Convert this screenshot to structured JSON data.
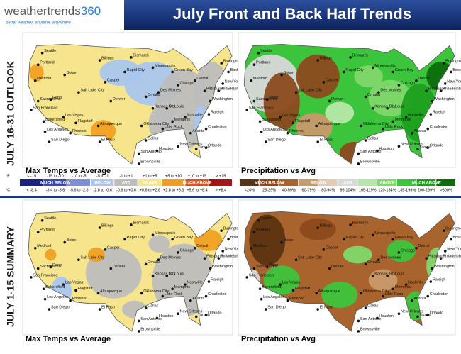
{
  "header": {
    "logo_word": "weathertrends",
    "logo_number": "360",
    "tagline": "better weather, anytime, anywhere",
    "title": "July Front and Back Half Trends"
  },
  "sections": [
    {
      "label": "JULY 16-31 OUTLOOK",
      "maps": [
        {
          "caption": "Max Temps vs Average",
          "kind": "temp_outlook"
        },
        {
          "caption": "Precipitation vs Avg",
          "kind": "precip_outlook"
        }
      ]
    },
    {
      "label": "JULY 1-15 SUMMARY",
      "maps": [
        {
          "caption": "Max Temps vs Average",
          "kind": "temp_summary"
        },
        {
          "caption": "Precipitation vs Avg",
          "kind": "precip_summary"
        }
      ]
    }
  ],
  "cities": [
    "Seattle",
    "Portland",
    "Medford",
    "Boise",
    "Reno",
    "Sacramento",
    "San Francisco",
    "Bakersfield",
    "Los Angeles",
    "San Diego",
    "Las Vegas",
    "Phoenix",
    "Flagstaff",
    "Salt Lake City",
    "Billings",
    "Casper",
    "Denver",
    "Albuquerque",
    "El Paso",
    "Bismarck",
    "Rapid City",
    "Minneapolis",
    "Omaha",
    "Kansas City",
    "Oklahoma City",
    "Dallas",
    "San Antonio",
    "Houston",
    "New Orleans",
    "Des Moines",
    "Chicago",
    "Green Bay",
    "Detroit",
    "St. Louis",
    "Little Rock",
    "Memphis",
    "Nashville",
    "Atlanta",
    "Charleston",
    "Tampa",
    "Orlando",
    "Washington",
    "Philadelphia",
    "New York",
    "Boston",
    "Burlington",
    "Pittsburgh",
    "Raleigh",
    "Brownsville"
  ],
  "temp_legend": {
    "unit_f": "°F",
    "unit_c": "°C",
    "f_ranges": [
      "< -15",
      "-15 to -10",
      "-10 to -5",
      "-5 to -1",
      "-1 to +1",
      "+1 to +5",
      "+5 to +10",
      "+10 to +15",
      "> +15"
    ],
    "c_ranges": [
      "< -8.4",
      "-8.4 to -5.6",
      "-5.6 to -2.8",
      "-2.8 to -0.6",
      "-0.6 to +0.6",
      "+0.6 to +2.8",
      "+2.8 to +5.6",
      "+5.6 to +8.4",
      "> +8.4"
    ],
    "categories": [
      "MUCH BELOW",
      "BELOW",
      "AVG",
      "ABOVE",
      "MUCH ABOVE"
    ],
    "colors": [
      "#1a237e",
      "#3949ab",
      "#7e8fd6",
      "#a9c6ee",
      "#bdbdbd",
      "#f6e58d",
      "#f0a020",
      "#e0501a",
      "#a31515"
    ]
  },
  "precip_legend": {
    "ranges": [
      "<24%",
      "25-39%",
      "40-59%",
      "60-79%",
      "80-94%",
      "95-104%",
      "105-119%",
      "120-134%",
      "135-199%",
      "200-299%",
      ">300%"
    ],
    "categories": [
      "MUCH BELOW",
      "BELOW",
      "AVG",
      "ABOVE",
      "MUCH ABOVE"
    ],
    "colors": [
      "#5c3310",
      "#8b4a1c",
      "#a8642c",
      "#c99a6a",
      "#e2cbb0",
      "#d8d8d8",
      "#b5e8a8",
      "#7fd86a",
      "#3cc43c",
      "#1ea01e",
      "#0b6e0b"
    ]
  }
}
